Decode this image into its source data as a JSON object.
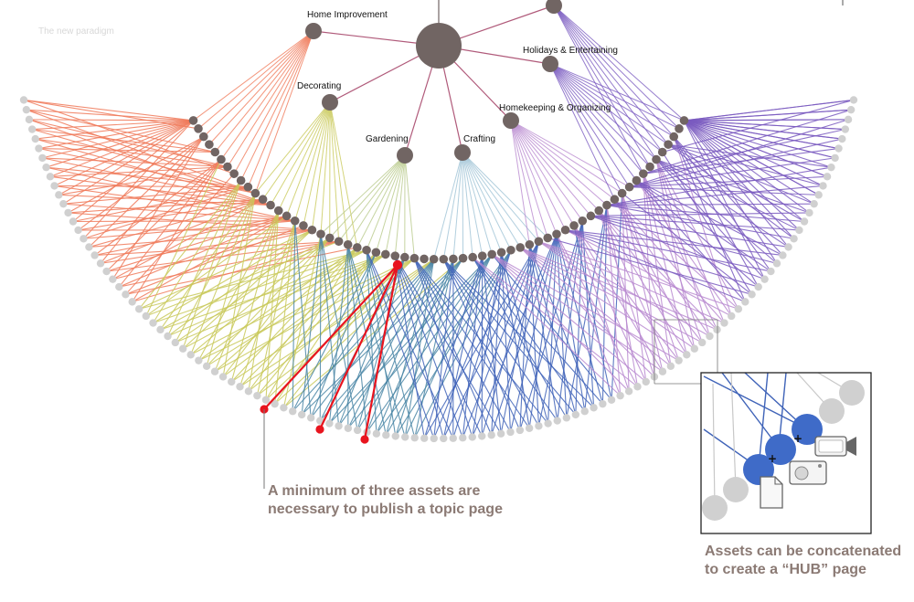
{
  "watermark": "The new paradigm",
  "categories": [
    {
      "label": "Home Improvement",
      "color": "#f07a5a"
    },
    {
      "label": "Decorating",
      "color": "#c9c95a"
    },
    {
      "label": "Gardening",
      "color": "#b8c98a"
    },
    {
      "label": "Crafting",
      "color": "#9fc3d6"
    },
    {
      "label": "Homekeeping & Organizing",
      "color": "#b98ad0"
    },
    {
      "label": "Holidays & Entertaining",
      "color": "#7a5bc0"
    }
  ],
  "colors": {
    "topic_node": "#716563",
    "asset_node": "#d0d0d0",
    "highlight": "#e8141e",
    "blue_links": "#3f63b8",
    "teal_links": "#4a86a6",
    "hub_asset": "#3f6bc8",
    "callout_text": "#8b7a74"
  },
  "callouts": {
    "min_assets": {
      "line1": "A minimum of three assets are",
      "line2": "necessary to publish a topic page"
    },
    "hub": {
      "line1": "Assets can be concatenated",
      "line2": "to create a “HUB” page"
    }
  },
  "inset_icons": [
    "video-camera-icon",
    "image-icon",
    "document-icon"
  ]
}
